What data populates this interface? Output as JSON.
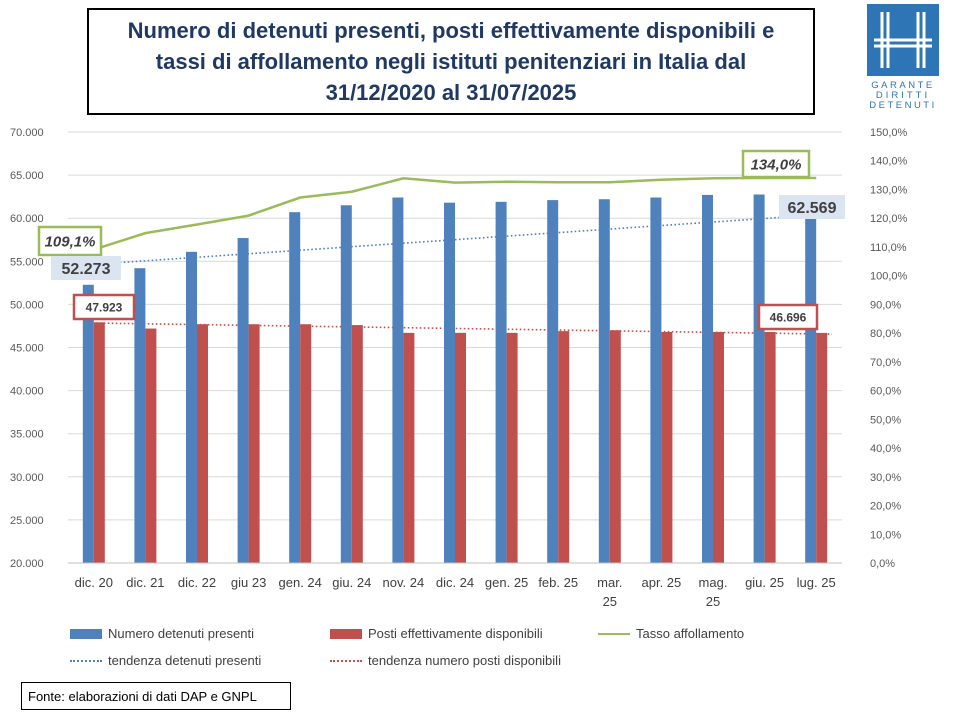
{
  "title": "Numero di detenuti presenti, posti effettivamente disponibili e\ntassi di affollamento negli istituti penitenziari in Italia dal\n31/12/2020 al 31/07/2025",
  "logo": {
    "lines": [
      "GARANTE",
      "DIRITTI",
      "DETENUTI"
    ],
    "color": "#2e75b6"
  },
  "source": "Fonte: elaborazioni di dati DAP e GNPL",
  "chart_data": {
    "type": "bar",
    "categories": [
      "dic. 20",
      "dic. 21",
      "dic. 22",
      "giu 23",
      "gen. 24",
      "giu. 24",
      "nov. 24",
      "dic. 24",
      "gen. 25",
      "feb. 25",
      "mar. 25",
      "apr. 25",
      "mag. 25",
      "giu. 25",
      "lug. 25"
    ],
    "category_labels": [
      [
        "dic. 20"
      ],
      [
        "dic. 21"
      ],
      [
        "dic. 22"
      ],
      [
        "giu 23"
      ],
      [
        "gen. 24"
      ],
      [
        "giu. 24"
      ],
      [
        "nov. 24"
      ],
      [
        "dic. 24"
      ],
      [
        "gen. 25"
      ],
      [
        "feb. 25"
      ],
      [
        "mar.",
        "25"
      ],
      [
        "apr. 25"
      ],
      [
        "mag.",
        "25"
      ],
      [
        "giu. 25"
      ],
      [
        "lug. 25"
      ]
    ],
    "series": [
      {
        "name": "Numero detenuti presenti",
        "type": "bar",
        "color": "#4f81bd",
        "values": [
          52273,
          54200,
          56100,
          57700,
          60700,
          61500,
          62400,
          61800,
          61900,
          62100,
          62200,
          62400,
          62700,
          62750,
          62569
        ]
      },
      {
        "name": "Posti effettivamente disponibili",
        "type": "bar",
        "color": "#c0504d",
        "values": [
          47923,
          47200,
          47700,
          47700,
          47700,
          47600,
          46700,
          46700,
          46700,
          46900,
          47000,
          46800,
          46800,
          46800,
          46696
        ]
      },
      {
        "name": "Tasso affollamento",
        "type": "line",
        "axis": "right",
        "color": "#9bbb59",
        "values": [
          109.1,
          114.8,
          117.8,
          120.9,
          127.2,
          129.2,
          133.9,
          132.4,
          132.7,
          132.5,
          132.5,
          133.4,
          133.9,
          134.0,
          134.0
        ]
      },
      {
        "name": "tendenza detenuti presenti",
        "type": "trend",
        "color": "#4f81bd",
        "start": 54600,
        "end": 60500
      },
      {
        "name": "tendenza numero posti disponibili",
        "type": "trend",
        "color": "#c0504d",
        "start": 47850,
        "end": 46550
      }
    ],
    "y_left": {
      "min": 20000,
      "max": 70000,
      "step": 5000,
      "ticks": [
        "20.000",
        "25.000",
        "30.000",
        "35.000",
        "40.000",
        "45.000",
        "50.000",
        "55.000",
        "60.000",
        "65.000",
        "70.000"
      ]
    },
    "y_right": {
      "min": 0,
      "max": 150,
      "step": 10,
      "ticks": [
        "0,0%",
        "10,0%",
        "20,0%",
        "30,0%",
        "40,0%",
        "50,0%",
        "60,0%",
        "70,0%",
        "80,0%",
        "90,0%",
        "100,0%",
        "110,0%",
        "120,0%",
        "130,0%",
        "140,0%",
        "150,0%"
      ]
    },
    "grid": true,
    "legend_position": "bottom",
    "annotations": {
      "first_rate": "109,1%",
      "last_rate": "134,0%",
      "first_detenuti": "52.273",
      "last_detenuti": "62.569",
      "first_posti": "47.923",
      "last_posti": "46.696"
    }
  }
}
